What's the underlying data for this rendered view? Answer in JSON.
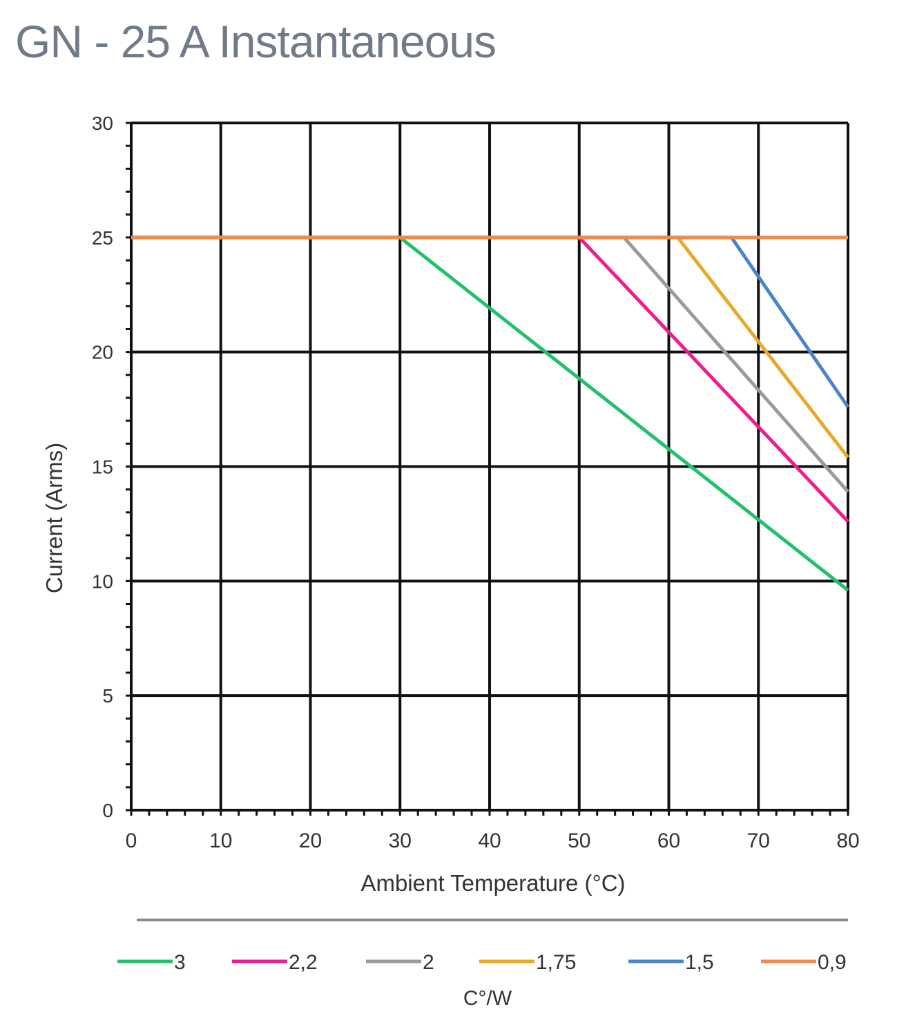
{
  "chart_data": {
    "type": "line",
    "title": "GN - 25 A Instantaneous",
    "xlabel": "Ambient Temperature (°C)",
    "ylabel": "Current (Arms)",
    "xlim": [
      0,
      80
    ],
    "ylim": [
      0,
      30
    ],
    "xticks": [
      0,
      10,
      20,
      30,
      40,
      50,
      60,
      70,
      80
    ],
    "yticks": [
      0,
      5,
      10,
      15,
      20,
      25,
      30
    ],
    "grid": true,
    "legend_position": "bottom",
    "legend_title": "C°/W",
    "series": [
      {
        "name": "3",
        "color": "#22c06a",
        "x": [
          0,
          30,
          80
        ],
        "y": [
          25,
          25,
          9.6
        ]
      },
      {
        "name": "2,2",
        "color": "#ee1c8e",
        "x": [
          0,
          50,
          80
        ],
        "y": [
          25,
          25,
          12.6
        ]
      },
      {
        "name": "2",
        "color": "#9a9a9a",
        "x": [
          0,
          55,
          80
        ],
        "y": [
          25,
          25,
          13.9
        ]
      },
      {
        "name": "1,75",
        "color": "#e8a82a",
        "x": [
          0,
          61,
          80
        ],
        "y": [
          25,
          25,
          15.4
        ]
      },
      {
        "name": "1,5",
        "color": "#4a86c6",
        "x": [
          0,
          67,
          80
        ],
        "y": [
          25,
          25,
          17.6
        ]
      },
      {
        "name": "0,9",
        "color": "#f08a4e",
        "x": [
          0,
          80
        ],
        "y": [
          25,
          25
        ]
      }
    ]
  }
}
